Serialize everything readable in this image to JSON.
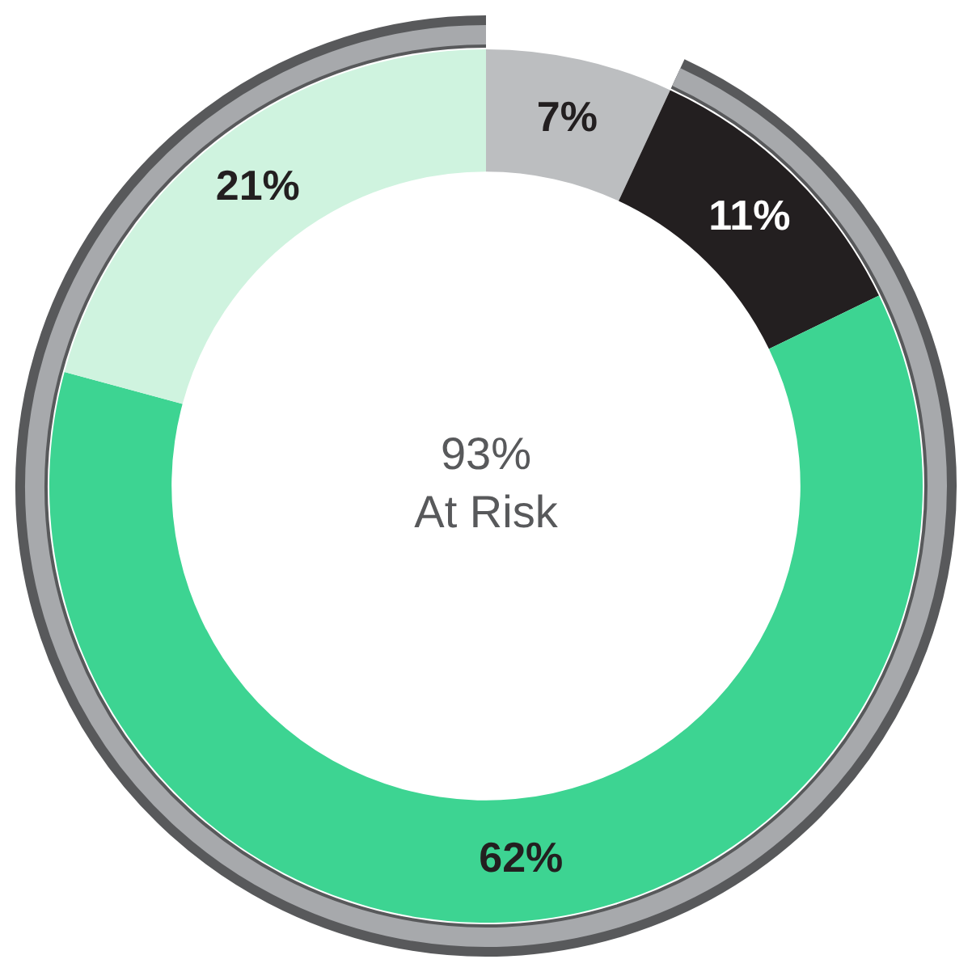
{
  "chart_data": {
    "type": "donut",
    "categories": [
      null,
      null,
      null,
      null
    ],
    "values": [
      7,
      11,
      62,
      21
    ],
    "colors": [
      "#bcbec0",
      "#231f20",
      "#3dd492",
      "#cff3df"
    ],
    "value_labels": [
      "7%",
      "11%",
      "62%",
      "21%"
    ],
    "legend": false,
    "annotations": [
      "93%",
      "At Risk"
    ]
  }
}
